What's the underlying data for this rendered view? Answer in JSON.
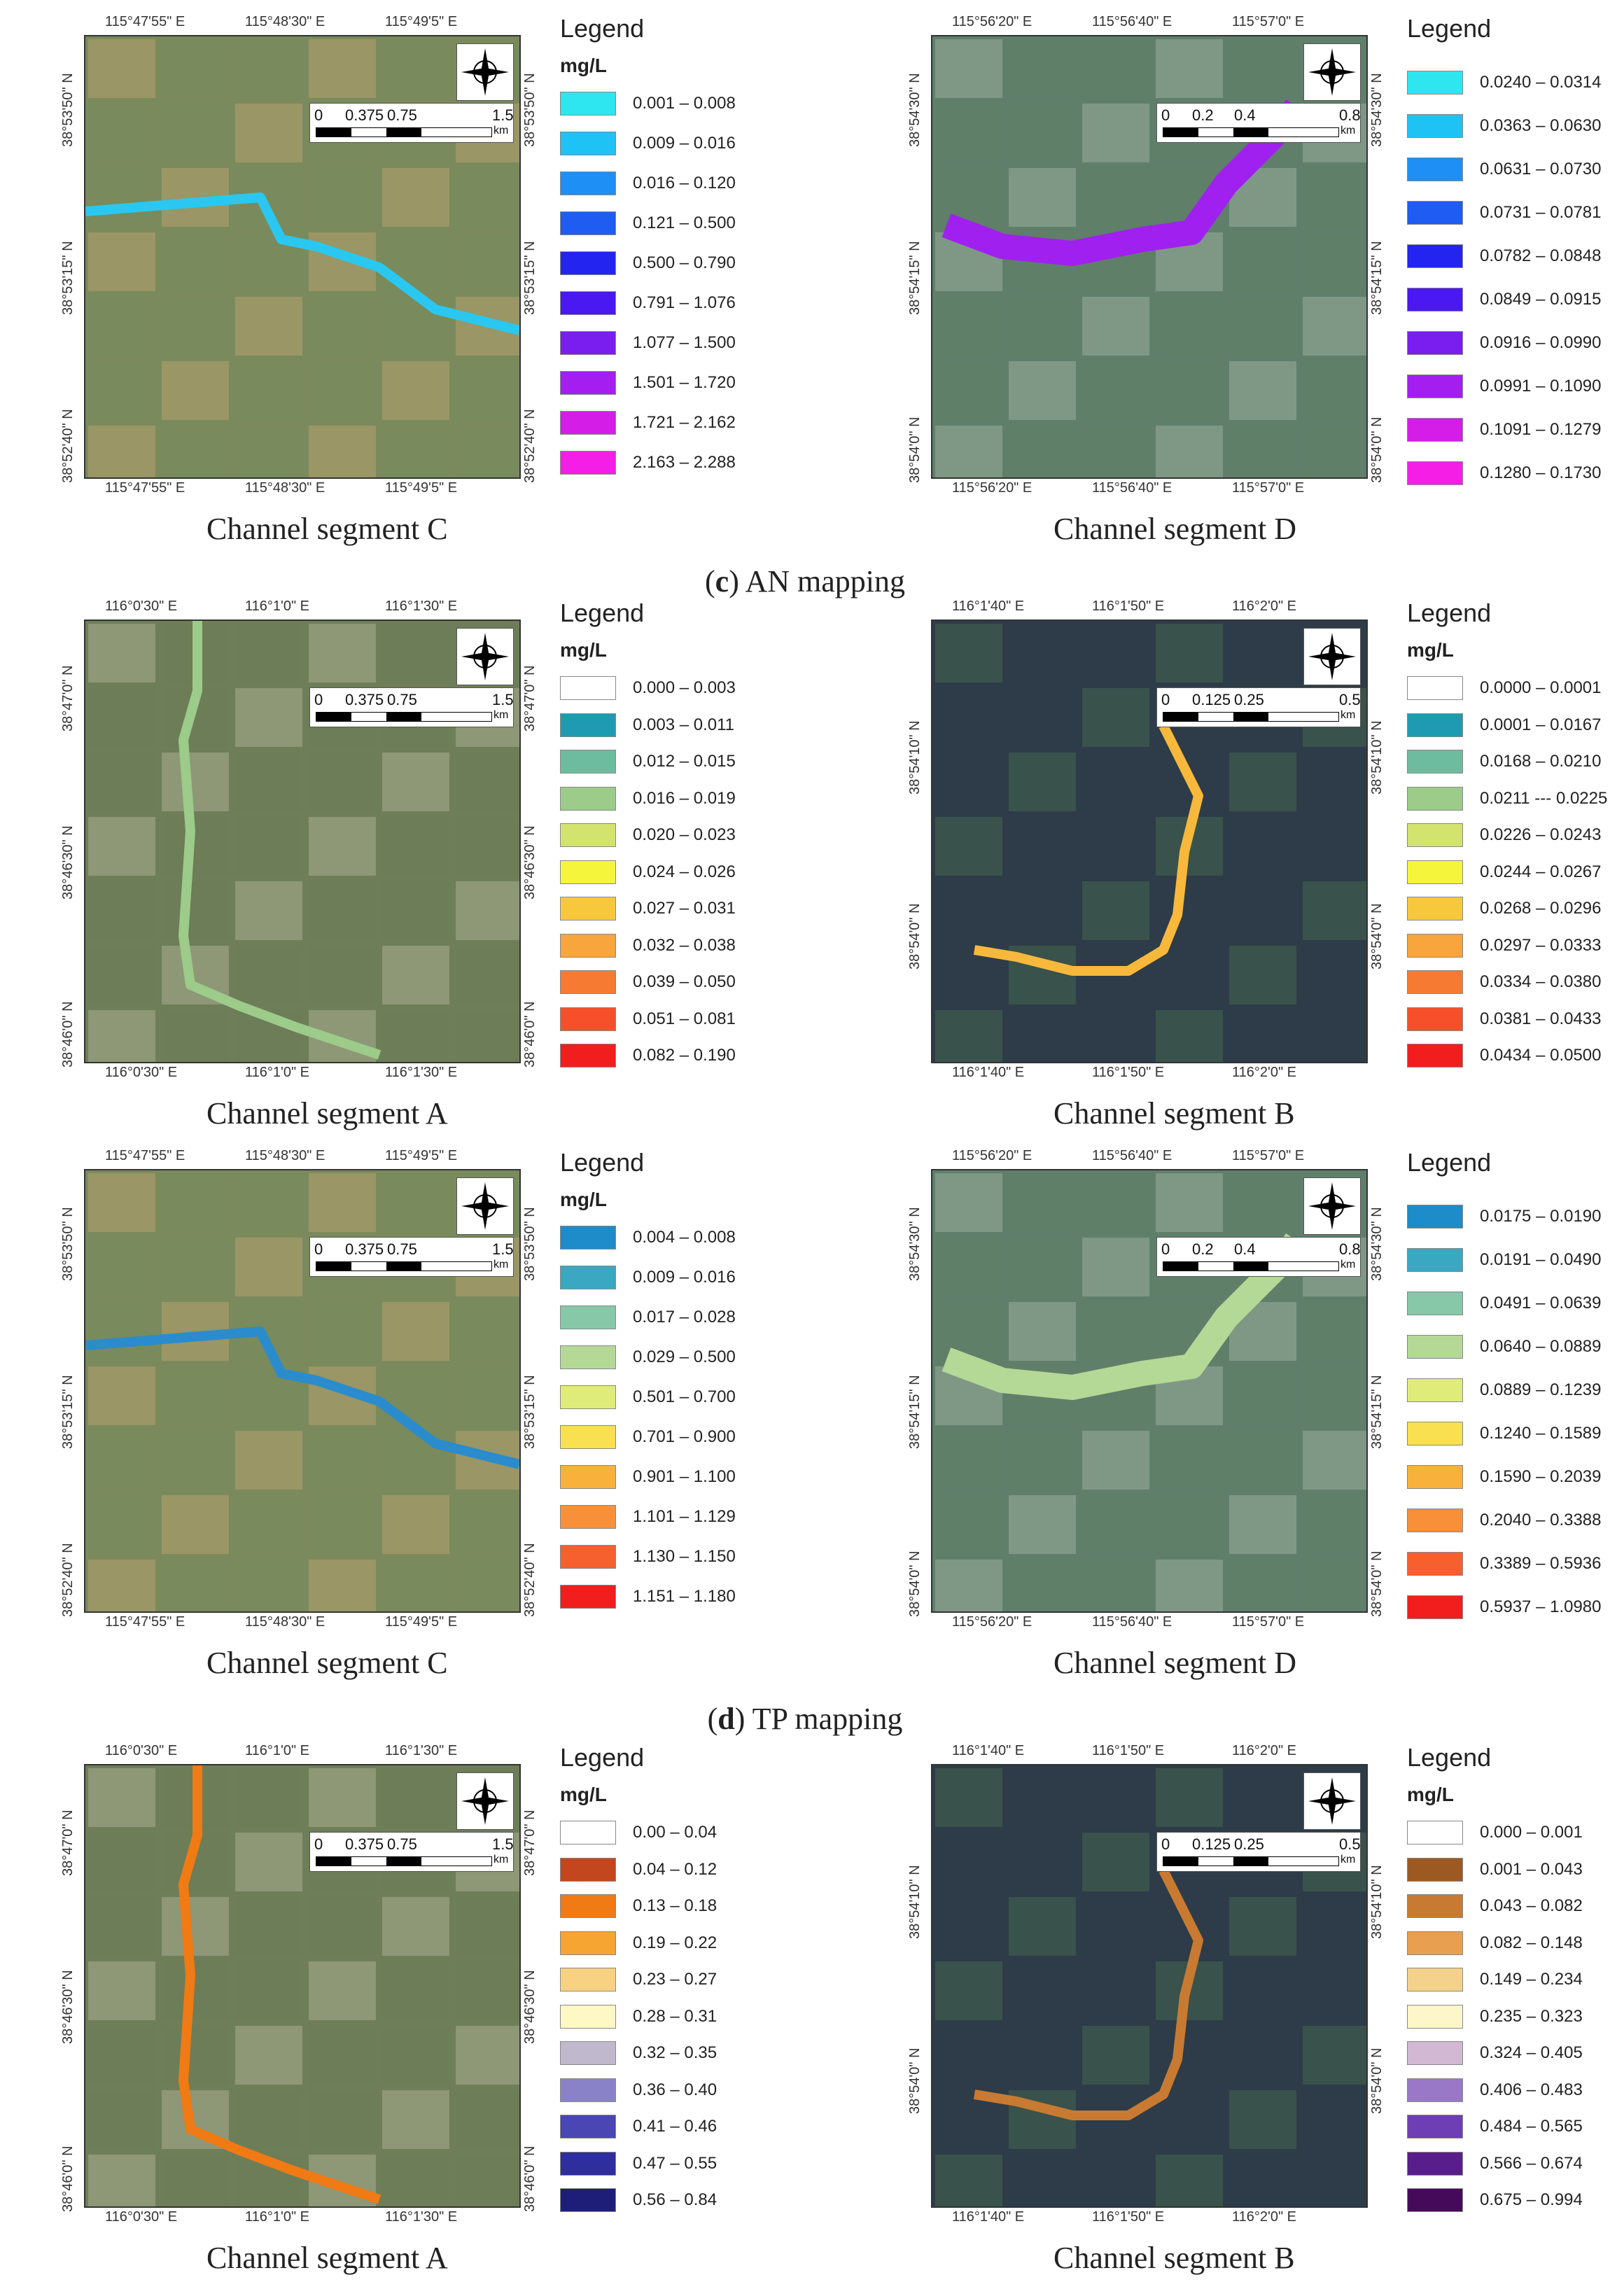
{
  "sections": [
    {
      "letter": "c",
      "label": "AN mapping"
    },
    {
      "letter": "d",
      "label": "TP mapping"
    }
  ],
  "panels": [
    {
      "caption": "Channel segment C",
      "top_coords": [
        "115°47'55\" E",
        "115°48'30\" E",
        "115°49'5\" E"
      ],
      "bottom_coords": [
        "115°47'55\" E",
        "115°48'30\" E",
        "115°49'5\" E"
      ],
      "left_coords": [
        "38°53'50\" N",
        "38°53'15\" N",
        "38°52'40\" N"
      ],
      "right_coords": [
        "38°53'50\" N",
        "38°53'15\" N",
        "38°52'40\" N"
      ],
      "scale": {
        "ticks": [
          "0",
          "0.375",
          "0.75",
          "1.5"
        ],
        "unit": "km"
      },
      "legend": {
        "title": "Legend",
        "unit": "mg/L",
        "items": [
          {
            "label": "0.001 – 0.008",
            "color": "#2ee6f0"
          },
          {
            "label": "0.009 – 0.016",
            "color": "#1ec2f5"
          },
          {
            "label": "0.016 – 0.120",
            "color": "#1e8ff5"
          },
          {
            "label": "0.121 – 0.500",
            "color": "#1e5cf2"
          },
          {
            "label": "0.500 – 0.790",
            "color": "#2424f0"
          },
          {
            "label": "0.791 – 1.076",
            "color": "#4a18f0"
          },
          {
            "label": "1.077 – 1.500",
            "color": "#7a1ef0"
          },
          {
            "label": "1.501 – 1.720",
            "color": "#a41ef0"
          },
          {
            "label": "1.721 – 2.162",
            "color": "#d41ee8"
          },
          {
            "label": "2.163 – 2.288",
            "color": "#f51ee6"
          }
        ]
      }
    },
    {
      "caption": "Channel segment D",
      "top_coords": [
        "115°56'20\" E",
        "115°56'40\" E",
        "115°57'0\" E"
      ],
      "bottom_coords": [
        "115°56'20\" E",
        "115°56'40\" E",
        "115°57'0\" E"
      ],
      "left_coords": [
        "38°54'30\" N",
        "38°54'15\" N",
        "38°54'0\" N"
      ],
      "right_coords": [
        "38°54'30\" N",
        "38°54'15\" N",
        "38°54'0\" N"
      ],
      "scale": {
        "ticks": [
          "0",
          "0.2",
          "0.4",
          "0.8"
        ],
        "unit": "km"
      },
      "legend": {
        "title": "Legend",
        "unit": "",
        "items": [
          {
            "label": "0.0240 – 0.0314",
            "color": "#2ee6f0"
          },
          {
            "label": "0.0363 – 0.0630",
            "color": "#1ec2f5"
          },
          {
            "label": "0.0631 – 0.0730",
            "color": "#1e8ff5"
          },
          {
            "label": "0.0731 – 0.0781",
            "color": "#1e5cf2"
          },
          {
            "label": "0.0782 – 0.0848",
            "color": "#2424f0"
          },
          {
            "label": "0.0849 – 0.0915",
            "color": "#4a18f0"
          },
          {
            "label": "0.0916 – 0.0990",
            "color": "#7a1ef0"
          },
          {
            "label": "0.0991 – 0.1090",
            "color": "#a41ef0"
          },
          {
            "label": "0.1091 – 0.1279",
            "color": "#d41ee8"
          },
          {
            "label": "0.1280 – 0.1730",
            "color": "#f51ee6"
          }
        ]
      }
    },
    {
      "caption": "Channel segment A",
      "top_coords": [
        "116°0'30\" E",
        "116°1'0\" E",
        "116°1'30\" E"
      ],
      "bottom_coords": [
        "116°0'30\" E",
        "116°1'0\" E",
        "116°1'30\" E"
      ],
      "left_coords": [
        "38°47'0\" N",
        "38°46'30\" N",
        "38°46'0\" N"
      ],
      "right_coords": [
        "38°47'0\" N",
        "38°46'30\" N",
        "38°46'0\" N"
      ],
      "scale": {
        "ticks": [
          "0",
          "0.375",
          "0.75",
          "1.5"
        ],
        "unit": "km"
      },
      "legend": {
        "title": "Legend",
        "unit": "mg/L",
        "items": [
          {
            "label": "0.000 – 0.003",
            "color": "#ffffff"
          },
          {
            "label": "0.003 – 0.011",
            "color": "#1e9bb2"
          },
          {
            "label": "0.012 – 0.015",
            "color": "#6ebca0"
          },
          {
            "label": "0.016 – 0.019",
            "color": "#9ccb8a"
          },
          {
            "label": "0.020 – 0.023",
            "color": "#d2e36e"
          },
          {
            "label": "0.024 – 0.026",
            "color": "#f5f53c"
          },
          {
            "label": "0.027 – 0.031",
            "color": "#f7c83c"
          },
          {
            "label": "0.032 – 0.038",
            "color": "#f7a53c"
          },
          {
            "label": "0.039 – 0.050",
            "color": "#f77a32"
          },
          {
            "label": "0.051 – 0.081",
            "color": "#f5502a"
          },
          {
            "label": "0.082 – 0.190",
            "color": "#f21e1e"
          }
        ]
      }
    },
    {
      "caption": "Channel segment B",
      "top_coords": [
        "116°1'40\" E",
        "116°1'50\" E",
        "116°2'0\" E"
      ],
      "bottom_coords": [
        "116°1'40\" E",
        "116°1'50\" E",
        "116°2'0\" E"
      ],
      "left_coords": [
        "38°54'10\" N",
        "38°54'0\" N"
      ],
      "right_coords": [
        "38°54'10\" N",
        "38°54'0\" N"
      ],
      "scale": {
        "ticks": [
          "0",
          "0.125",
          "0.25",
          "0.5"
        ],
        "unit": "km"
      },
      "legend": {
        "title": "Legend",
        "unit": "mg/L",
        "items": [
          {
            "label": "0.0000 – 0.0001",
            "color": "#ffffff"
          },
          {
            "label": "0.0001 – 0.0167",
            "color": "#1e9bb2"
          },
          {
            "label": "0.0168 – 0.0210",
            "color": "#6ebca0"
          },
          {
            "label": "0.0211 --- 0.0225",
            "color": "#9ccb8a"
          },
          {
            "label": "0.0226 – 0.0243",
            "color": "#d2e36e"
          },
          {
            "label": "0.0244 – 0.0267",
            "color": "#f5f53c"
          },
          {
            "label": "0.0268 – 0.0296",
            "color": "#f7c83c"
          },
          {
            "label": "0.0297 – 0.0333",
            "color": "#f7a53c"
          },
          {
            "label": "0.0334 – 0.0380",
            "color": "#f77a32"
          },
          {
            "label": "0.0381 – 0.0433",
            "color": "#f5502a"
          },
          {
            "label": "0.0434 – 0.0500",
            "color": "#f21e1e"
          }
        ]
      }
    },
    {
      "caption": "Channel segment C",
      "top_coords": [
        "115°47'55\" E",
        "115°48'30\" E",
        "115°49'5\" E"
      ],
      "bottom_coords": [
        "115°47'55\" E",
        "115°48'30\" E",
        "115°49'5\" E"
      ],
      "left_coords": [
        "38°53'50\" N",
        "38°53'15\" N",
        "38°52'40\" N"
      ],
      "right_coords": [
        "38°53'50\" N",
        "38°53'15\" N",
        "38°52'40\" N"
      ],
      "scale": {
        "ticks": [
          "0",
          "0.375",
          "0.75",
          "1.5"
        ],
        "unit": "km"
      },
      "legend": {
        "title": "Legend",
        "unit": "mg/L",
        "items": [
          {
            "label": "0.004 – 0.008",
            "color": "#1e8cc8"
          },
          {
            "label": "0.009 – 0.016",
            "color": "#3aa8c0"
          },
          {
            "label": "0.017 – 0.028",
            "color": "#86c8a8"
          },
          {
            "label": "0.029 – 0.500",
            "color": "#b4d896"
          },
          {
            "label": "0.501 – 0.700",
            "color": "#e0ec7a"
          },
          {
            "label": "0.701 – 0.900",
            "color": "#f8e050"
          },
          {
            "label": "0.901 – 1.100",
            "color": "#f8b23c"
          },
          {
            "label": "1.101 – 1.129",
            "color": "#f8903a"
          },
          {
            "label": "1.130 – 1.150",
            "color": "#f5602e"
          },
          {
            "label": "1.151 – 1.180",
            "color": "#f21e1e"
          }
        ]
      }
    },
    {
      "caption": "Channel segment D",
      "top_coords": [
        "115°56'20\" E",
        "115°56'40\" E",
        "115°57'0\" E"
      ],
      "bottom_coords": [
        "115°56'20\" E",
        "115°56'40\" E",
        "115°57'0\" E"
      ],
      "left_coords": [
        "38°54'30\" N",
        "38°54'15\" N",
        "38°54'0\" N"
      ],
      "right_coords": [
        "38°54'30\" N",
        "38°54'15\" N",
        "38°54'0\" N"
      ],
      "scale": {
        "ticks": [
          "0",
          "0.2",
          "0.4",
          "0.8"
        ],
        "unit": "km"
      },
      "legend": {
        "title": "Legend",
        "unit": "",
        "items": [
          {
            "label": "0.0175 – 0.0190",
            "color": "#1e8cc8"
          },
          {
            "label": "0.0191 – 0.0490",
            "color": "#3aa8c0"
          },
          {
            "label": "0.0491 – 0.0639",
            "color": "#86c8a8"
          },
          {
            "label": "0.0640 – 0.0889",
            "color": "#b4d896"
          },
          {
            "label": "0.0889 – 0.1239",
            "color": "#e0ec7a"
          },
          {
            "label": "0.1240 – 0.1589",
            "color": "#f8e050"
          },
          {
            "label": "0.1590 – 0.2039",
            "color": "#f8b23c"
          },
          {
            "label": "0.2040 – 0.3388",
            "color": "#f8903a"
          },
          {
            "label": "0.3389 – 0.5936",
            "color": "#f5602e"
          },
          {
            "label": "0.5937 – 1.0980",
            "color": "#f21e1e"
          }
        ]
      }
    },
    {
      "caption": "Channel segment A",
      "top_coords": [
        "116°0'30\" E",
        "116°1'0\" E",
        "116°1'30\" E"
      ],
      "bottom_coords": [
        "116°0'30\" E",
        "116°1'0\" E",
        "116°1'30\" E"
      ],
      "left_coords": [
        "38°47'0\" N",
        "38°46'30\" N",
        "38°46'0\" N"
      ],
      "right_coords": [
        "38°47'0\" N",
        "38°46'30\" N",
        "38°46'0\" N"
      ],
      "scale": {
        "ticks": [
          "0",
          "0.375",
          "0.75",
          "1.5"
        ],
        "unit": "km"
      },
      "legend": {
        "title": "Legend",
        "unit": "mg/L",
        "items": [
          {
            "label": "0.00 – 0.04",
            "color": "#ffffff"
          },
          {
            "label": "0.04 – 0.12",
            "color": "#c4461e"
          },
          {
            "label": "0.13 – 0.18",
            "color": "#f07a14"
          },
          {
            "label": "0.19 – 0.22",
            "color": "#f7a532"
          },
          {
            "label": "0.23 – 0.27",
            "color": "#f8d282"
          },
          {
            "label": "0.28 – 0.31",
            "color": "#fdf8c4"
          },
          {
            "label": "0.32 – 0.35",
            "color": "#c0b8cc"
          },
          {
            "label": "0.36 – 0.40",
            "color": "#8a82c8"
          },
          {
            "label": "0.41 – 0.46",
            "color": "#4a46b4"
          },
          {
            "label": "0.47 – 0.55",
            "color": "#2e2e9e"
          },
          {
            "label": "0.56 – 0.84",
            "color": "#1e1e78"
          }
        ]
      }
    },
    {
      "caption": "Channel segment B",
      "top_coords": [
        "116°1'40\" E",
        "116°1'50\" E",
        "116°2'0\" E"
      ],
      "bottom_coords": [
        "116°1'40\" E",
        "116°1'50\" E",
        "116°2'0\" E"
      ],
      "left_coords": [
        "38°54'10\" N",
        "38°54'0\" N"
      ],
      "right_coords": [
        "38°54'10\" N",
        "38°54'0\" N"
      ],
      "scale": {
        "ticks": [
          "0",
          "0.125",
          "0.25",
          "0.5"
        ],
        "unit": "km"
      },
      "legend": {
        "title": "Legend",
        "unit": "mg/L",
        "items": [
          {
            "label": "0.000 – 0.001",
            "color": "#ffffff"
          },
          {
            "label": "0.001 – 0.043",
            "color": "#9c5a22"
          },
          {
            "label": "0.043 – 0.082",
            "color": "#c87a32"
          },
          {
            "label": "0.082 – 0.148",
            "color": "#e8a050"
          },
          {
            "label": "0.149 – 0.234",
            "color": "#f5d28c"
          },
          {
            "label": "0.235 – 0.323",
            "color": "#fdf6c8"
          },
          {
            "label": "0.324 – 0.405",
            "color": "#d2b8d2"
          },
          {
            "label": "0.406 – 0.483",
            "color": "#9a78c8"
          },
          {
            "label": "0.484 – 0.565",
            "color": "#6e3eb4"
          },
          {
            "label": "0.566 – 0.674",
            "color": "#5a1e8c"
          },
          {
            "label": "0.675 – 0.994",
            "color": "#460a5a"
          }
        ]
      }
    }
  ]
}
